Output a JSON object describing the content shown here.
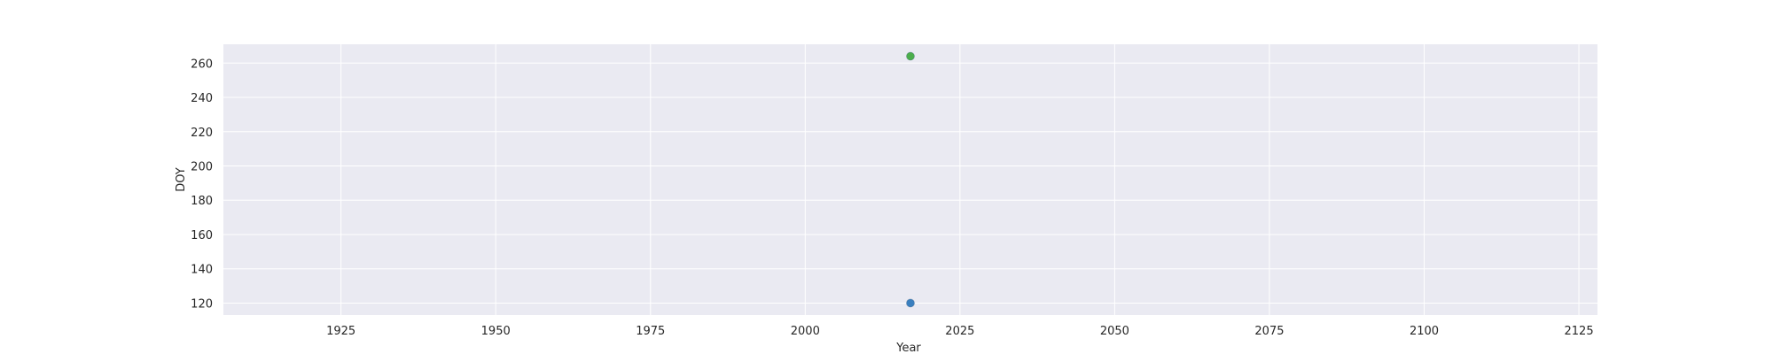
{
  "chart_data": {
    "type": "scatter",
    "title": "",
    "xlabel": "Year",
    "ylabel": "DOY",
    "xlim": [
      1906,
      2128
    ],
    "ylim": [
      113,
      271
    ],
    "xticks": [
      1925,
      1950,
      1975,
      2000,
      2025,
      2050,
      2075,
      2100,
      2125
    ],
    "yticks": [
      120,
      140,
      160,
      180,
      200,
      220,
      240,
      260
    ],
    "grid": true,
    "background_color": "#eaeaf2",
    "grid_color": "#ffffff",
    "series": [
      {
        "color": "#3a7fbf",
        "points": [
          {
            "x": 2017,
            "y": 120
          }
        ]
      },
      {
        "color": "#4cae4c",
        "points": [
          {
            "x": 2017,
            "y": 264
          }
        ]
      }
    ]
  }
}
